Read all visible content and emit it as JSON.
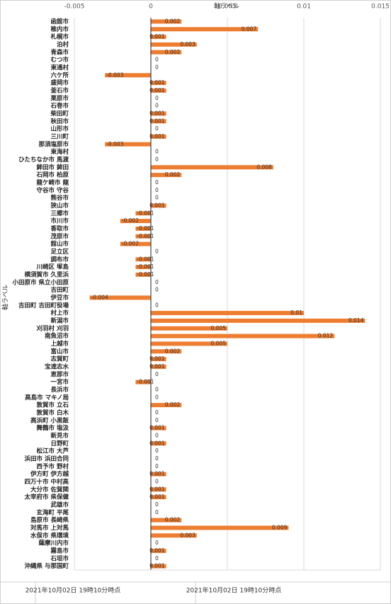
{
  "chart_data": {
    "type": "bar",
    "orientation": "horizontal",
    "x_label": "軸ラベル",
    "y_label": "軸ラベル",
    "xlim": [
      -0.005,
      0.015
    ],
    "xticks": [
      -0.005,
      0,
      0.005,
      0.01,
      0.015
    ],
    "grid": true,
    "color": "#ed7d31",
    "categories": [
      "函館市",
      "稚内市",
      "札幌市",
      "泊村",
      "青森市",
      "むつ市",
      "東通村",
      "六ケ所",
      "盛岡市",
      "釜石市",
      "栗原市",
      "石巻市",
      "柴田町",
      "秋田市",
      "山形市",
      "三川町",
      "那須塩原市",
      "東海村",
      "ひたちなか市 馬渡",
      "鉾田市 鉾田",
      "石岡市 柏原",
      "龍ケ崎市 龍",
      "守谷市 守谷",
      "熊谷市",
      "狭山市",
      "三郷市",
      "市川市",
      "香取市",
      "茂原市",
      "館山市",
      "足立区",
      "調布市",
      "川崎区 塚島",
      "横須賀市 久里浜",
      "小田原市 県立小田原",
      "吉田町",
      "伊豆市",
      "吉田町 吉田町役場",
      "村上市",
      "新潟市",
      "刈羽村 刈羽",
      "南魚沼市",
      "上越市",
      "富山市",
      "志賀町",
      "宝達志水",
      "恵那市",
      "一宮市",
      "長浜市",
      "高島市 マキノ局",
      "敦賀市 立石",
      "敦賀市 白木",
      "高浜町 小黒飯",
      "舞鶴市 塩汲",
      "新見市",
      "日野町",
      "松江市 大芦",
      "浜田市 浜田合同",
      "西予市 野村",
      "伊方町 伊方越",
      "四万十市 中村高",
      "大分市 佐賀関",
      "太宰府市 県保健",
      "武雄市",
      "玄海町 平尾",
      "島原市 長崎県",
      "対馬市 上対馬",
      "水俣市 県環境",
      "薩摩川内市",
      "霧島市",
      "石垣市",
      "沖縄県 与那国町"
    ],
    "values": [
      0.002,
      0.007,
      0.001,
      0.003,
      0.002,
      0,
      0,
      -0.003,
      0.001,
      0.001,
      0,
      0,
      0.001,
      0.001,
      0,
      0.001,
      -0.003,
      0,
      0,
      0.008,
      0.002,
      0,
      0,
      0,
      0.001,
      -0.001,
      -0.002,
      -0.001,
      -0.001,
      -0.002,
      0,
      -0.001,
      -0.001,
      -0.001,
      0,
      0,
      -0.004,
      0,
      0.01,
      0.014,
      0.005,
      0.012,
      0.005,
      0.002,
      0.001,
      0.001,
      0,
      -0.001,
      0,
      0,
      0.002,
      0,
      0,
      0.001,
      0,
      0.001,
      0,
      0,
      0,
      0.001,
      0,
      0.001,
      0.001,
      0,
      0,
      0.002,
      0.009,
      0.003,
      0,
      0.001,
      0,
      0.001
    ],
    "footer": [
      "2021年10月02日 19時10分時点",
      "2021年10月02日 19時10分時点"
    ]
  }
}
